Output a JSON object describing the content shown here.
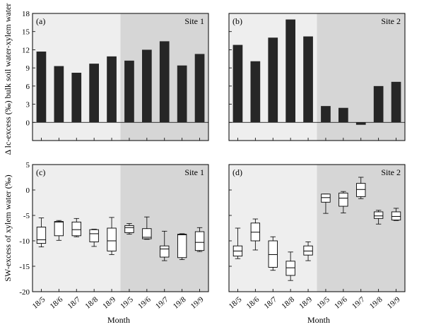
{
  "figure": {
    "ylabel_top": "Δ lc-excess (‰) bulk soil water-xylem water",
    "ylabel_bottom": "SW-excess of xylem water (‰)",
    "xlabel": "Month"
  },
  "chart_data": [
    {
      "id": "a",
      "type": "bar",
      "panel_label": "(a)",
      "site_label": "Site 1",
      "categories": [
        "18/5",
        "18/6",
        "18/7",
        "18/8",
        "18/9",
        "19/5",
        "19/6",
        "19/7",
        "19/8",
        "19/9"
      ],
      "values": [
        11.7,
        9.3,
        8.2,
        9.7,
        10.9,
        10.2,
        12.0,
        13.4,
        9.4,
        11.3
      ],
      "ylim": [
        -3,
        18
      ],
      "yticks": [
        0,
        3,
        6,
        9,
        12,
        15,
        18
      ],
      "shade_from_index": 5
    },
    {
      "id": "b",
      "type": "bar",
      "panel_label": "(b)",
      "site_label": "Site 2",
      "categories": [
        "18/5",
        "18/6",
        "18/7",
        "18/8",
        "18/9",
        "19/5",
        "19/6",
        "19/7",
        "19/8",
        "19/9"
      ],
      "values": [
        12.8,
        10.1,
        14.0,
        17.0,
        14.2,
        2.7,
        2.4,
        -0.4,
        6.0,
        6.7
      ],
      "ylim": [
        -3,
        18
      ],
      "shade_from_index": 5
    },
    {
      "id": "c",
      "type": "box",
      "panel_label": "(c)",
      "site_label": "Site 1",
      "categories": [
        "18/5",
        "18/6",
        "18/7",
        "18/8",
        "18/9",
        "19/5",
        "19/6",
        "19/7",
        "19/8",
        "19/9"
      ],
      "boxes": [
        {
          "min": -11.2,
          "q1": -10.5,
          "median": -9.8,
          "q3": -7.3,
          "max": -5.5
        },
        {
          "min": -9.9,
          "q1": -9.0,
          "median": -6.3,
          "q3": -6.2,
          "max": -6.0
        },
        {
          "min": -9.2,
          "q1": -9.0,
          "median": -7.8,
          "q3": -6.3,
          "max": -5.6
        },
        {
          "min": -11.1,
          "q1": -10.2,
          "median": -8.6,
          "q3": -7.8,
          "max": -7.7
        },
        {
          "min": -12.7,
          "q1": -12.0,
          "median": -10.0,
          "q3": -7.5,
          "max": -5.4
        },
        {
          "min": -8.7,
          "q1": -8.4,
          "median": -7.4,
          "q3": -7.0,
          "max": -6.6
        },
        {
          "min": -9.7,
          "q1": -9.6,
          "median": -9.3,
          "q3": -7.6,
          "max": -5.3
        },
        {
          "min": -13.9,
          "q1": -13.2,
          "median": -11.6,
          "q3": -11.0,
          "max": -8.1
        },
        {
          "min": -13.7,
          "q1": -13.3,
          "median": -8.8,
          "q3": -8.7,
          "max": -8.6
        },
        {
          "min": -12.1,
          "q1": -11.9,
          "median": -10.3,
          "q3": -8.2,
          "max": -7.4
        }
      ],
      "ylim": [
        -20,
        5
      ],
      "yticks": [
        -20,
        -15,
        -10,
        -5,
        0,
        5
      ],
      "shade_from_index": 5
    },
    {
      "id": "d",
      "type": "box",
      "panel_label": "(d)",
      "site_label": "Site 2",
      "categories": [
        "18/5",
        "18/6",
        "18/7",
        "18/8",
        "18/9",
        "19/5",
        "19/6",
        "19/7",
        "19/8",
        "19/9"
      ],
      "boxes": [
        {
          "min": -13.5,
          "q1": -13.0,
          "median": -12.0,
          "q3": -11.0,
          "max": -7.5
        },
        {
          "min": -11.8,
          "q1": -10.0,
          "median": -8.3,
          "q3": -6.5,
          "max": -5.7
        },
        {
          "min": -15.8,
          "q1": -15.2,
          "median": -12.7,
          "q3": -10.0,
          "max": -9.2
        },
        {
          "min": -17.8,
          "q1": -16.8,
          "median": -15.3,
          "q3": -14.0,
          "max": -12.2
        },
        {
          "min": -13.9,
          "q1": -12.8,
          "median": -12.0,
          "q3": -11.0,
          "max": -10.2
        },
        {
          "min": -4.6,
          "q1": -2.4,
          "median": -1.5,
          "q3": -0.8,
          "max": -0.8
        },
        {
          "min": -4.5,
          "q1": -3.2,
          "median": -1.6,
          "q3": -0.6,
          "max": -0.3
        },
        {
          "min": -1.7,
          "q1": -1.3,
          "median": 0.1,
          "q3": 1.3,
          "max": 2.5
        },
        {
          "min": -6.7,
          "q1": -5.6,
          "median": -5.1,
          "q3": -4.3,
          "max": -4.0
        },
        {
          "min": -6.0,
          "q1": -5.9,
          "median": -5.2,
          "q3": -4.3,
          "max": -3.6
        }
      ],
      "ylim": [
        -20,
        5
      ],
      "shade_from_index": 5
    }
  ],
  "colors": {
    "light_shade": "#eeeeee",
    "dark_shade": "#d6d6d6",
    "bar_fill": "#262626",
    "box_fill": "#ffffff",
    "line": "#000000"
  }
}
